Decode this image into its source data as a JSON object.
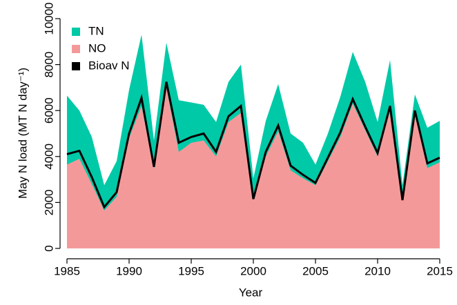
{
  "chart_data": {
    "type": "area",
    "xlabel": "Year",
    "ylabel": "May N load (MT N day⁻¹)",
    "x": [
      1985,
      1986,
      1987,
      1988,
      1989,
      1990,
      1991,
      1992,
      1993,
      1994,
      1995,
      1996,
      1997,
      1998,
      1999,
      2000,
      2001,
      2002,
      2003,
      2004,
      2005,
      2006,
      2007,
      2008,
      2009,
      2010,
      2011,
      2012,
      2013,
      2014,
      2015
    ],
    "series": [
      {
        "name": "TN",
        "color": "#00c9a7",
        "style": "area",
        "values": [
          6650,
          6000,
          4850,
          2750,
          3800,
          6900,
          9300,
          4700,
          8950,
          6450,
          6350,
          6250,
          5500,
          7250,
          8000,
          3050,
          5550,
          7150,
          5000,
          4600,
          3650,
          5000,
          6600,
          8550,
          7250,
          5500,
          8200,
          2750,
          6700,
          5250,
          5550
        ]
      },
      {
        "name": "NO",
        "color": "#f4999a",
        "style": "area",
        "values": [
          3650,
          3900,
          2800,
          1650,
          2250,
          4800,
          6200,
          3450,
          7000,
          4200,
          4600,
          4700,
          4000,
          5500,
          5900,
          2150,
          4000,
          5100,
          3400,
          3050,
          2750,
          3800,
          4850,
          6300,
          5150,
          4000,
          6000,
          2100,
          5900,
          3500,
          3750
        ]
      },
      {
        "name": "Bioav N",
        "color": "#000000",
        "style": "line",
        "values": [
          4100,
          4250,
          3100,
          1800,
          2450,
          5000,
          6550,
          3550,
          7250,
          4600,
          4850,
          5000,
          4200,
          5750,
          6200,
          2150,
          4200,
          5350,
          3600,
          3200,
          2850,
          3950,
          5050,
          6500,
          5300,
          4150,
          6200,
          2100,
          6000,
          3700,
          3950
        ]
      }
    ],
    "xlim": [
      1985,
      2015
    ],
    "xticks": [
      1985,
      1990,
      1995,
      2000,
      2005,
      2010,
      2015
    ],
    "ylim": [
      0,
      10000
    ],
    "yticks": [
      0,
      2000,
      4000,
      6000,
      8000,
      10000
    ],
    "legend": "top-left"
  }
}
